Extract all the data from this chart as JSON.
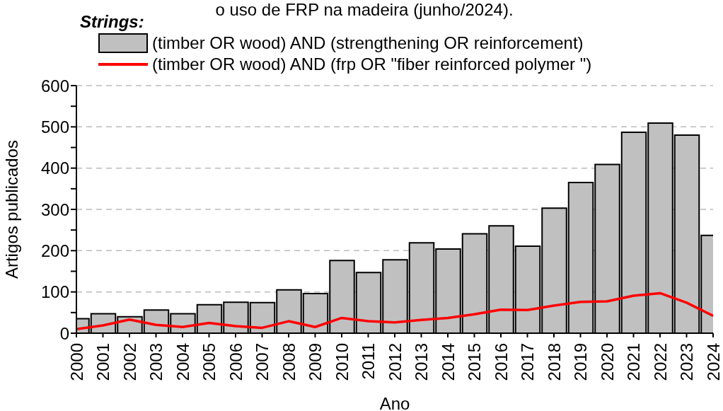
{
  "chart_data": {
    "type": "bar",
    "title": "o uso de FRP na madeira (junho/2024).",
    "legend_title": "Strings:",
    "xlabel": "Ano",
    "ylabel": "Artigos publicados",
    "x": [
      2000,
      2001,
      2002,
      2003,
      2004,
      2005,
      2006,
      2007,
      2008,
      2009,
      2010,
      2011,
      2012,
      2013,
      2014,
      2015,
      2016,
      2017,
      2018,
      2019,
      2020,
      2021,
      2022,
      2023,
      2024
    ],
    "series": [
      {
        "name": "(timber OR wood) AND (strengthening OR reinforcement)",
        "color": "#c0c0c0",
        "values": [
          35,
          47,
          40,
          56,
          47,
          69,
          75,
          74,
          105,
          96,
          176,
          147,
          178,
          219,
          204,
          241,
          260,
          211,
          303,
          365,
          409,
          487,
          509,
          480,
          237
        ]
      },
      {
        "name": "(timber OR wood) AND (frp OR \"fiber reinforced polymer \")",
        "type": "line",
        "color": "#ff0000",
        "values": [
          10,
          19,
          33,
          20,
          15,
          25,
          17,
          13,
          29,
          15,
          37,
          29,
          26,
          32,
          37,
          46,
          57,
          56,
          67,
          76,
          77,
          91,
          97,
          74,
          42
        ]
      }
    ],
    "xlim": [
      2000,
      2024
    ],
    "xticks": [
      2000,
      2001,
      2002,
      2003,
      2004,
      2005,
      2006,
      2007,
      2008,
      2009,
      2010,
      2011,
      2012,
      2013,
      2014,
      2015,
      2016,
      2017,
      2018,
      2019,
      2020,
      2021,
      2022,
      2023,
      2024
    ],
    "ylim": [
      0,
      600
    ],
    "yticks": [
      0,
      {
        "value": 50,
        "label": null
      },
      100,
      {
        "value": 150,
        "label": null
      },
      200,
      {
        "value": 250,
        "label": null
      },
      300,
      {
        "value": 350,
        "label": null
      },
      400,
      {
        "value": 450,
        "label": null
      },
      500,
      {
        "value": 550,
        "label": null
      },
      600
    ],
    "grid": "y",
    "legend": "top left",
    "marker": "none",
    "line_style": "solid"
  }
}
